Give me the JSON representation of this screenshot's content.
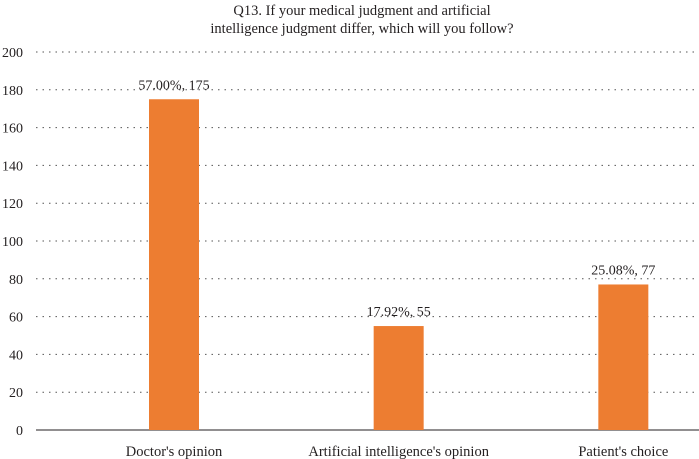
{
  "chart_data": {
    "type": "bar",
    "title_lines": [
      "Q13. If your medical judgment and artificial",
      "intelligence judgment differ, which will you follow?"
    ],
    "categories": [
      "Doctor's opinion",
      "Artificial intelligence's opinion",
      "Patient's choice"
    ],
    "values": [
      175,
      55,
      77
    ],
    "data_labels": [
      "57.00%, 175",
      "17.92%, 55",
      "25.08%, 77"
    ],
    "ylim": [
      0,
      200
    ],
    "yticks": [
      0,
      20,
      40,
      60,
      80,
      100,
      120,
      140,
      160,
      180,
      200
    ],
    "grid": true,
    "bar_color": "#ed7d31"
  }
}
